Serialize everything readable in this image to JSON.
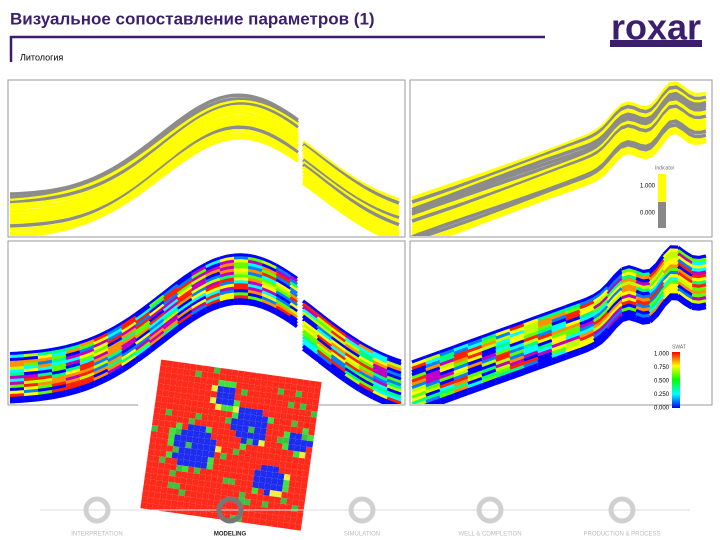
{
  "header": {
    "title": "Визуальное сопоставление параметров (1)",
    "subtitle": "Литология",
    "logo": "roxar"
  },
  "panels": {
    "indicator_legend": {
      "title": "Indicator",
      "labels": [
        "1.000",
        "0.000"
      ]
    },
    "property_legend": {
      "title": "SWAT",
      "labels": [
        "1.000",
        "0.750",
        "0.500",
        "0.250",
        "0.000"
      ]
    }
  },
  "footer": {
    "steps": [
      "INTERPRETATION",
      "MODELING",
      "SIMULATION",
      "WELL & COMPLETION",
      "PRODUCTION & PROCESS"
    ]
  }
}
